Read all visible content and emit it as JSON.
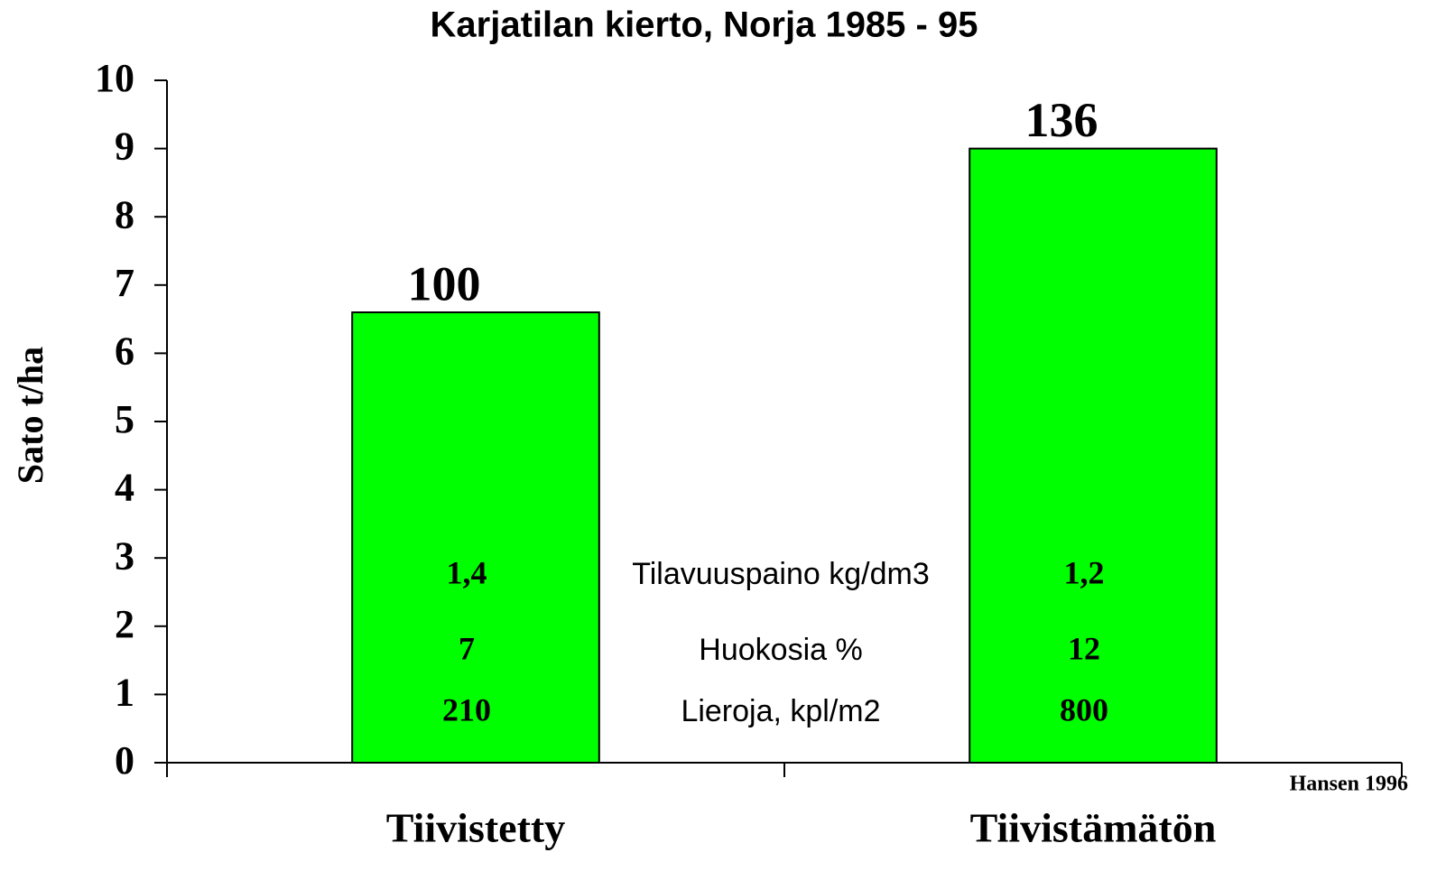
{
  "chart_data": {
    "type": "bar",
    "title": "Karjatilan kierto, Norja 1985 - 95",
    "ylabel": "Sato t/ha",
    "categories": [
      "Tiivistetty",
      "Tiivistämätön"
    ],
    "values": [
      6.6,
      9.0
    ],
    "bar_labels": [
      "100",
      "136"
    ],
    "color": "#00ff00",
    "ylim": [
      0,
      10
    ],
    "yticks": [
      0,
      1,
      2,
      3,
      4,
      5,
      6,
      7,
      8,
      9,
      10
    ],
    "table": [
      {
        "label": "Tilavuuspaino kg/dm3",
        "values": [
          "1,4",
          "1,2"
        ]
      },
      {
        "label": "Huokosia %",
        "values": [
          "7",
          "12"
        ]
      },
      {
        "label": "Lieroja, kpl/m2",
        "values": [
          "210",
          "800"
        ]
      }
    ],
    "source": "Hansen 1996"
  }
}
